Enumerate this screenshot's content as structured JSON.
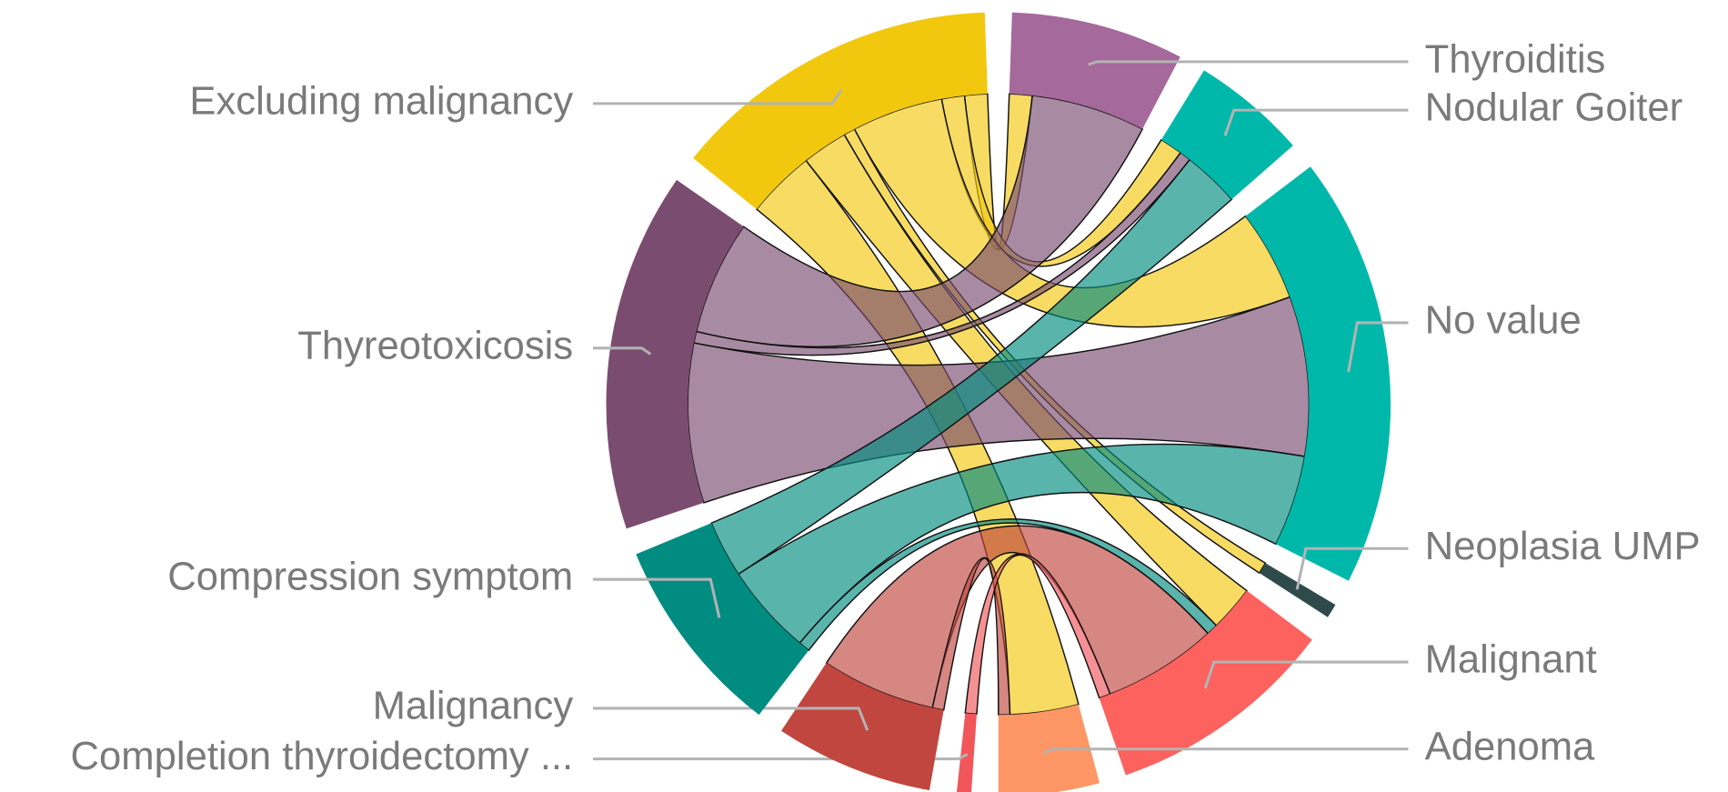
{
  "chart_data": {
    "type": "chord",
    "nodes": [
      {
        "name": "Thyroiditis",
        "color": "#a5699b"
      },
      {
        "name": "Nodular Goiter",
        "color": "#00b8aa"
      },
      {
        "name": "No value",
        "color": "#00b8aa"
      },
      {
        "name": "Neoplasia UMP",
        "color": "#2f4a4a"
      },
      {
        "name": "Malignant",
        "color": "#fd625e"
      },
      {
        "name": "Adenoma",
        "color": "#fe9666"
      },
      {
        "name": "Completion thyroidectomy ...",
        "color": "#f0565a"
      },
      {
        "name": "Malignancy",
        "color": "#c0463f"
      },
      {
        "name": "Compression symptom",
        "color": "#008c80"
      },
      {
        "name": "Thyreotoxicosis",
        "color": "#7a4d70"
      },
      {
        "name": "Excluding malignancy",
        "color": "#f2c80f"
      }
    ],
    "links": [
      {
        "source": 10,
        "target": 0,
        "value": 2
      },
      {
        "source": 10,
        "target": 1,
        "value": 2
      },
      {
        "source": 10,
        "target": 2,
        "value": 8
      },
      {
        "source": 10,
        "target": 3,
        "value": 1
      },
      {
        "source": 10,
        "target": 4,
        "value": 4
      },
      {
        "source": 10,
        "target": 5,
        "value": 6
      },
      {
        "source": 9,
        "target": 0,
        "value": 10
      },
      {
        "source": 9,
        "target": 1,
        "value": 1
      },
      {
        "source": 9,
        "target": 2,
        "value": 14
      },
      {
        "source": 8,
        "target": 1,
        "value": 5
      },
      {
        "source": 8,
        "target": 2,
        "value": 8
      },
      {
        "source": 8,
        "target": 4,
        "value": 1
      },
      {
        "source": 7,
        "target": 4,
        "value": 10
      },
      {
        "source": 7,
        "target": 5,
        "value": 1
      },
      {
        "source": 6,
        "target": 4,
        "value": 1
      }
    ]
  }
}
